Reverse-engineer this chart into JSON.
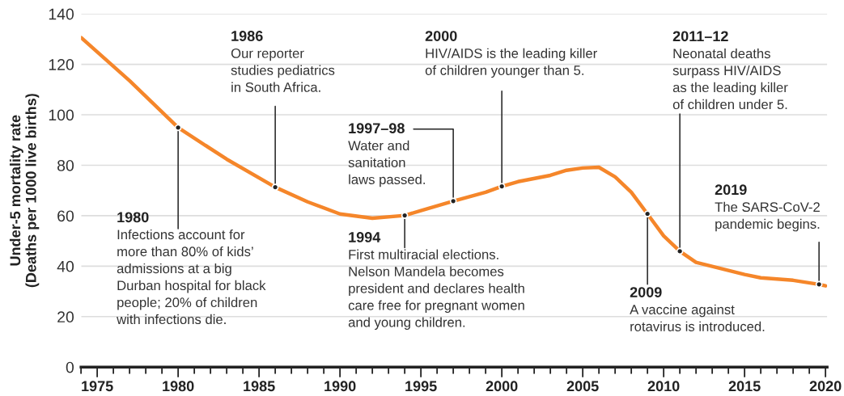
{
  "chart_data": {
    "type": "line",
    "ylabel": "Under-5 mortality rate\n(Deaths per 1000 live births)",
    "x": [
      1974,
      1977,
      1980,
      1983,
      1986,
      1988,
      1990,
      1992,
      1994,
      1995,
      1997,
      1999,
      2000,
      2001,
      2003,
      2004,
      2005,
      2006,
      2007,
      2008,
      2009,
      2010,
      2011,
      2012,
      2014,
      2015,
      2016,
      2018,
      2019.6,
      2020
    ],
    "series": [
      {
        "color": "#f5862a",
        "values": [
          130.6,
          113.5,
          94.9,
          82.4,
          71.3,
          65.5,
          60.7,
          59.0,
          60.1,
          62.0,
          65.8,
          69.3,
          71.6,
          73.5,
          76.0,
          78.0,
          78.9,
          79.2,
          75.4,
          69.3,
          60.7,
          52.0,
          45.9,
          41.5,
          38.3,
          36.7,
          35.4,
          34.4,
          32.8,
          32.2
        ]
      }
    ],
    "xlim": [
      1974,
      2020.1
    ],
    "ylim": [
      0,
      140
    ],
    "yticks": [
      0,
      20,
      40,
      60,
      80,
      100,
      120,
      140
    ],
    "xticks": [
      {
        "value": 1974,
        "label": null
      },
      1975,
      {
        "value": 1976,
        "label": null
      },
      {
        "value": 1977,
        "label": null
      },
      {
        "value": 1978,
        "label": null
      },
      {
        "value": 1979,
        "label": null
      },
      1980,
      {
        "value": 1981,
        "label": null
      },
      {
        "value": 1982,
        "label": null
      },
      {
        "value": 1983,
        "label": null
      },
      {
        "value": 1984,
        "label": null
      },
      1985,
      {
        "value": 1986,
        "label": null
      },
      {
        "value": 1987,
        "label": null
      },
      {
        "value": 1988,
        "label": null
      },
      {
        "value": 1989,
        "label": null
      },
      1990,
      {
        "value": 1991,
        "label": null
      },
      {
        "value": 1992,
        "label": null
      },
      {
        "value": 1993,
        "label": null
      },
      {
        "value": 1994,
        "label": null
      },
      1995,
      {
        "value": 1996,
        "label": null
      },
      {
        "value": 1997,
        "label": null
      },
      {
        "value": 1998,
        "label": null
      },
      {
        "value": 1999,
        "label": null
      },
      2000,
      {
        "value": 2001,
        "label": null
      },
      {
        "value": 2002,
        "label": null
      },
      {
        "value": 2003,
        "label": null
      },
      {
        "value": 2004,
        "label": null
      },
      2005,
      {
        "value": 2006,
        "label": null
      },
      {
        "value": 2007,
        "label": null
      },
      {
        "value": 2008,
        "label": null
      },
      {
        "value": 2009,
        "label": null
      },
      2010,
      {
        "value": 2011,
        "label": null
      },
      {
        "value": 2012,
        "label": null
      },
      {
        "value": 2013,
        "label": null
      },
      {
        "value": 2014,
        "label": null
      },
      2015,
      {
        "value": 2016,
        "label": null
      },
      {
        "value": 2017,
        "label": null
      },
      {
        "value": 2018,
        "label": null
      },
      {
        "value": 2019,
        "label": null
      },
      2020
    ],
    "grid": "y",
    "marker": "none",
    "line_style": "solid",
    "annotations": [
      {
        "text": "1980\nInfections account for\nmore than 80% of kids’\nadmissions at a big\nDurban hospital for black\npeople; 20% of children\nwith infections die.",
        "x": 1980,
        "y": 94.9
      },
      {
        "text": "1986\nOur reporter\nstudies pediatrics\nin South Africa.",
        "x": 1986,
        "y": 71.3
      },
      {
        "text": "1997–98\nWater and\nsanitation\nlaws passed.",
        "x": 1997,
        "y": 65.8
      },
      {
        "text": "2000\nHIV/AIDS is the leading killer\nof children younger than 5.",
        "x": 2000,
        "y": 71.6
      },
      {
        "text": "1994\nFirst multiracial elections.\nNelson Mandela becomes\npresident and declares health\ncare free for pregnant women\nand young children.",
        "x": 1994,
        "y": 60.1
      },
      {
        "text": "2009\nA vaccine against\nrotavirus is introduced.",
        "x": 2009,
        "y": 60.7
      },
      {
        "text": "2011–12\nNeonatal deaths\nsurpass HIV/AIDS\nas the leading killer\nof children under 5.",
        "x": 2011,
        "y": 45.9
      },
      {
        "text": "2019\nThe SARS-CoV-2\npandemic begins.",
        "x": 2019.6,
        "y": 32.8
      }
    ]
  }
}
